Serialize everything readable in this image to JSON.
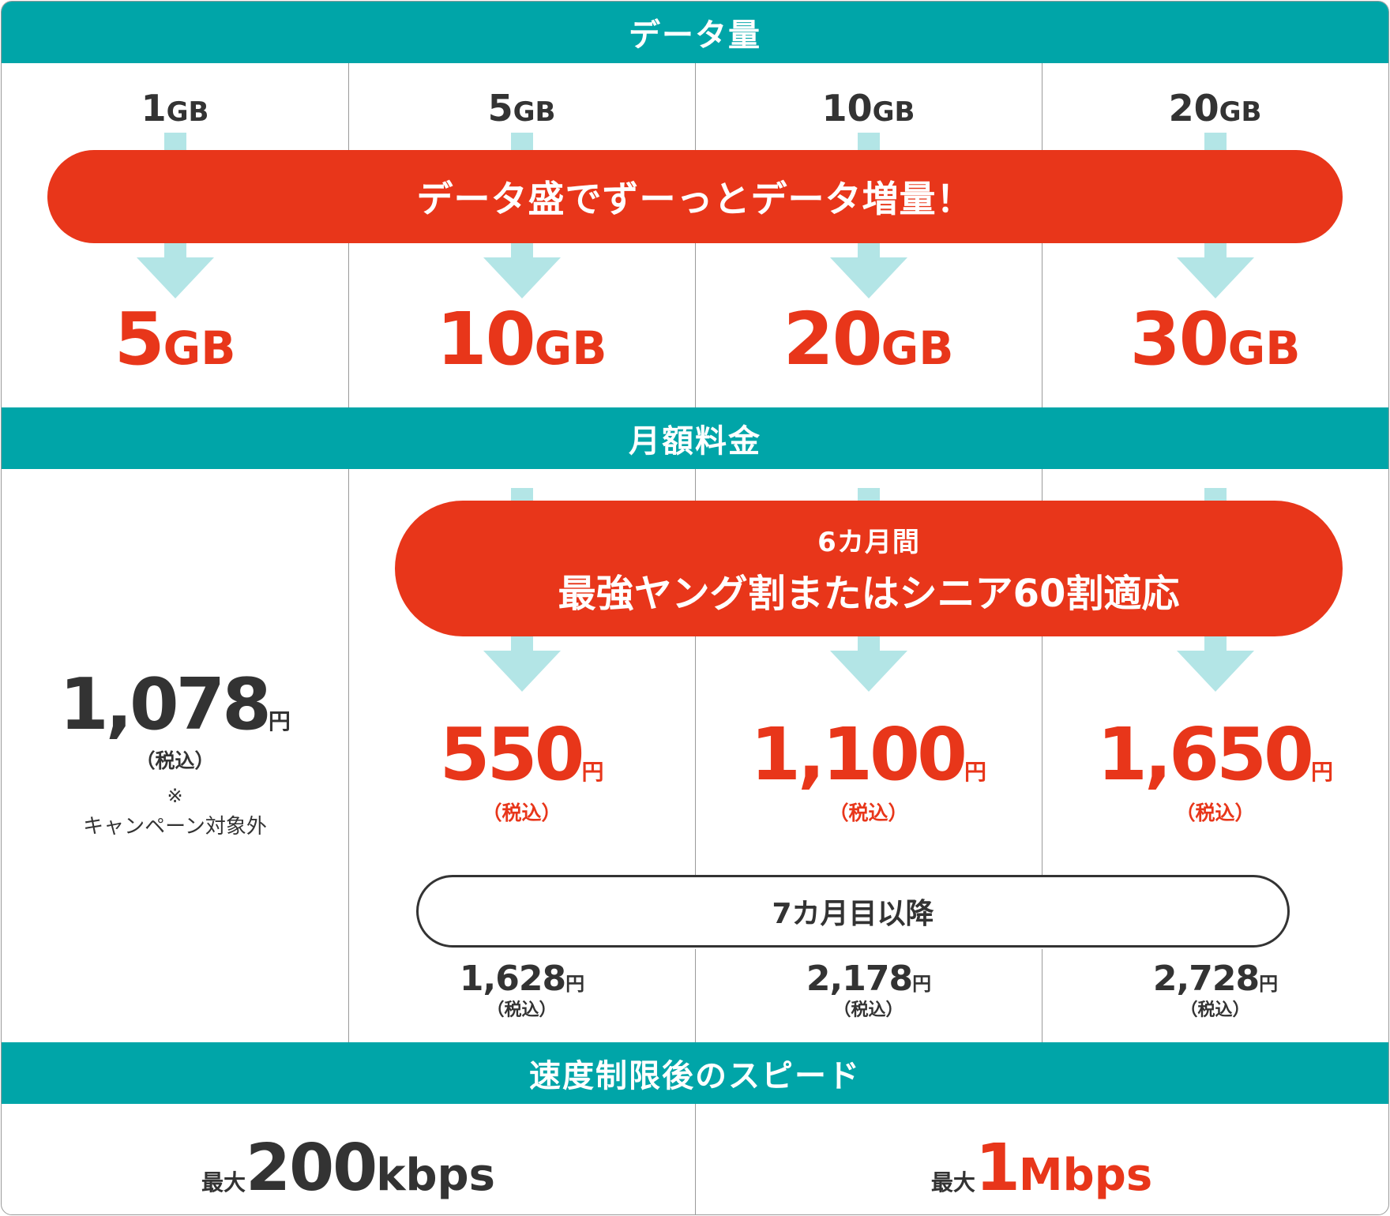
{
  "sections": {
    "data_title": "データ量",
    "fee_title": "月額料金",
    "speed_title": "速度制限後のスピード"
  },
  "data": {
    "before": [
      {
        "num": "1",
        "unit": "GB"
      },
      {
        "num": "5",
        "unit": "GB"
      },
      {
        "num": "10",
        "unit": "GB"
      },
      {
        "num": "20",
        "unit": "GB"
      }
    ],
    "banner": "データ盛でずーっとデータ増量！",
    "after": [
      {
        "num": "5",
        "unit": "GB"
      },
      {
        "num": "10",
        "unit": "GB"
      },
      {
        "num": "20",
        "unit": "GB"
      },
      {
        "num": "30",
        "unit": "GB"
      }
    ]
  },
  "fee": {
    "base_price": "1,078",
    "base_unit": "円",
    "base_tax": "（税込）",
    "note_mark": "※",
    "note_text": "キャンペーン対象外",
    "banner_sub": "6カ月間",
    "banner_main": "最強ヤング割またはシニア60割適応",
    "discounted": [
      {
        "price": "550",
        "unit": "円",
        "tax": "（税込）"
      },
      {
        "price": "1,100",
        "unit": "円",
        "tax": "（税込）"
      },
      {
        "price": "1,650",
        "unit": "円",
        "tax": "（税込）"
      }
    ],
    "later_label": "7カ月目以降",
    "later": [
      {
        "price": "1,628",
        "unit": "円",
        "tax": "（税込）"
      },
      {
        "price": "2,178",
        "unit": "円",
        "tax": "（税込）"
      },
      {
        "price": "2,728",
        "unit": "円",
        "tax": "（税込）"
      }
    ]
  },
  "speed": {
    "left": {
      "prefix": "最大",
      "num": "200",
      "unit": "kbps"
    },
    "right": {
      "prefix": "最大",
      "num": "1",
      "unit": "Mbps"
    }
  },
  "colors": {
    "teal": "#00a5a8",
    "red": "#e8361a",
    "arrow": "#b3e5e6",
    "text": "#333333"
  }
}
